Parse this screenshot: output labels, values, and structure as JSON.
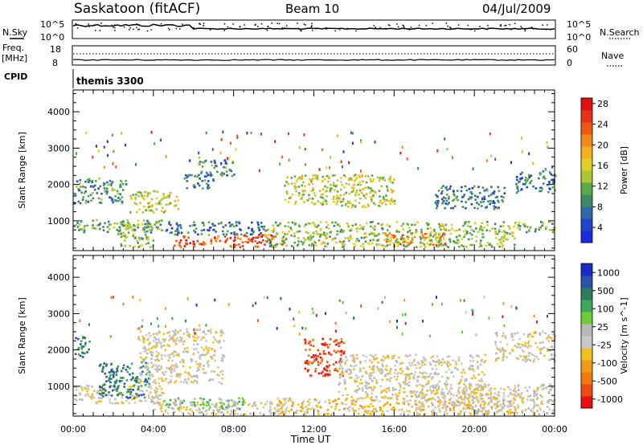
{
  "header": {
    "station": "Saskatoon (fitACF)",
    "beam": "Beam 10",
    "date": "04/Jul/2009"
  },
  "noise_panel": {
    "left_label": "N.Sky",
    "right_label": "N.Search",
    "left_ticks": [
      "10^5",
      "10^0"
    ],
    "right_ticks": [
      "10^5",
      "10^0"
    ]
  },
  "freq_panel": {
    "left_label": "Freq.",
    "left_unit": "[MHz]",
    "right_label": "Nave",
    "left_ticks": [
      "18",
      "8"
    ],
    "right_ticks": [
      "60",
      "0"
    ]
  },
  "cpid": {
    "label": "CPID",
    "value": "themis 3300"
  },
  "x_axis": {
    "label": "Time UT",
    "ticks": [
      "00:00",
      "04:00",
      "08:00",
      "12:00",
      "16:00",
      "20:00",
      "00:00"
    ]
  },
  "chart_data": [
    {
      "type": "heatmap",
      "quantity": "Power",
      "ylabel": "Slant Range [km]",
      "y_ticks": [
        1000,
        2000,
        3000,
        4000
      ],
      "ylim": [
        180,
        4600
      ],
      "xlim_hours": [
        0,
        24
      ],
      "colorbar": {
        "label": "Power [dB]",
        "ticks": [
          "4",
          "8",
          "12",
          "16",
          "20",
          "24",
          "28"
        ],
        "colors": [
          "#1a2be0",
          "#2244c8",
          "#2e6aa8",
          "#3c8a6a",
          "#5aa848",
          "#a8c83a",
          "#e0d02a",
          "#f0b020",
          "#f08a18",
          "#ee5a14",
          "#e8321a",
          "#e01010"
        ]
      },
      "regions": [
        {
          "t0": 0.0,
          "t1": 2.6,
          "r0": 1500,
          "r1": 2200,
          "level": 10
        },
        {
          "t0": 0.0,
          "t1": 4.5,
          "r0": 700,
          "r1": 1050,
          "level": 12
        },
        {
          "t0": 2.2,
          "t1": 4.0,
          "r0": 300,
          "r1": 1000,
          "level": 14
        },
        {
          "t0": 2.8,
          "t1": 5.2,
          "r0": 1250,
          "r1": 1850,
          "level": 16
        },
        {
          "t0": 4.5,
          "t1": 9.5,
          "r0": 650,
          "r1": 1000,
          "level": 8
        },
        {
          "t0": 5.0,
          "t1": 10.5,
          "r0": 300,
          "r1": 650,
          "level": 26
        },
        {
          "t0": 6.2,
          "t1": 8.0,
          "r0": 2250,
          "r1": 2700,
          "level": 10
        },
        {
          "t0": 5.5,
          "t1": 7.0,
          "r0": 1900,
          "r1": 2300,
          "level": 8
        },
        {
          "t0": 10.5,
          "t1": 16.0,
          "r0": 1400,
          "r1": 2300,
          "level": 16
        },
        {
          "t0": 9.5,
          "t1": 22.0,
          "r0": 300,
          "r1": 1000,
          "level": 14
        },
        {
          "t0": 15.5,
          "t1": 18.5,
          "r0": 350,
          "r1": 700,
          "level": 22
        },
        {
          "t0": 18.0,
          "t1": 21.5,
          "r0": 1350,
          "r1": 2000,
          "level": 8
        },
        {
          "t0": 22.0,
          "t1": 24.0,
          "r0": 1800,
          "r1": 2400,
          "level": 8
        },
        {
          "t0": 22.0,
          "t1": 24.0,
          "r0": 700,
          "r1": 1000,
          "level": 12
        }
      ]
    },
    {
      "type": "heatmap",
      "quantity": "Velocity",
      "ylabel": "Slant Range [km]",
      "y_ticks": [
        1000,
        2000,
        3000,
        4000
      ],
      "ylim": [
        180,
        4600
      ],
      "xlim_hours": [
        0,
        24
      ],
      "colorbar": {
        "label": "Velocity [m s^-1]",
        "ticks": [
          "1000",
          "500",
          "100",
          "25",
          "-25",
          "-100",
          "-500",
          "-1000"
        ],
        "colors": [
          "#1a2bc8",
          "#2a52a8",
          "#2f7a5a",
          "#3da85a",
          "#6ecc38",
          "#b8b8b8",
          "#c8c8c8",
          "#f0c020",
          "#f09a18",
          "#f07a10",
          "#ee4a14",
          "#e81010"
        ]
      },
      "regions": [
        {
          "t0": 0.0,
          "t1": 0.8,
          "r0": 1800,
          "r1": 2400,
          "level": 2
        },
        {
          "t0": 0.0,
          "t1": 4.5,
          "r0": 550,
          "r1": 1050,
          "level": 6
        },
        {
          "t0": 1.2,
          "t1": 3.8,
          "r0": 700,
          "r1": 1700,
          "level": 2
        },
        {
          "t0": 3.2,
          "t1": 7.5,
          "r0": 1100,
          "r1": 2600,
          "level": 6
        },
        {
          "t0": 4.0,
          "t1": 10.5,
          "r0": 250,
          "r1": 600,
          "level": 6
        },
        {
          "t0": 4.5,
          "t1": 8.5,
          "r0": 400,
          "r1": 700,
          "level": 4
        },
        {
          "t0": 10.0,
          "t1": 22.0,
          "r0": 250,
          "r1": 700,
          "level": 7
        },
        {
          "t0": 11.5,
          "t1": 13.5,
          "r0": 1300,
          "r1": 2350,
          "level": 10
        },
        {
          "t0": 13.2,
          "t1": 20.5,
          "r0": 700,
          "r1": 1900,
          "level": 6
        },
        {
          "t0": 17.0,
          "t1": 24.0,
          "r0": 250,
          "r1": 1100,
          "level": 6
        },
        {
          "t0": 21.0,
          "t1": 24.0,
          "r0": 1700,
          "r1": 2500,
          "level": 6
        }
      ]
    }
  ]
}
